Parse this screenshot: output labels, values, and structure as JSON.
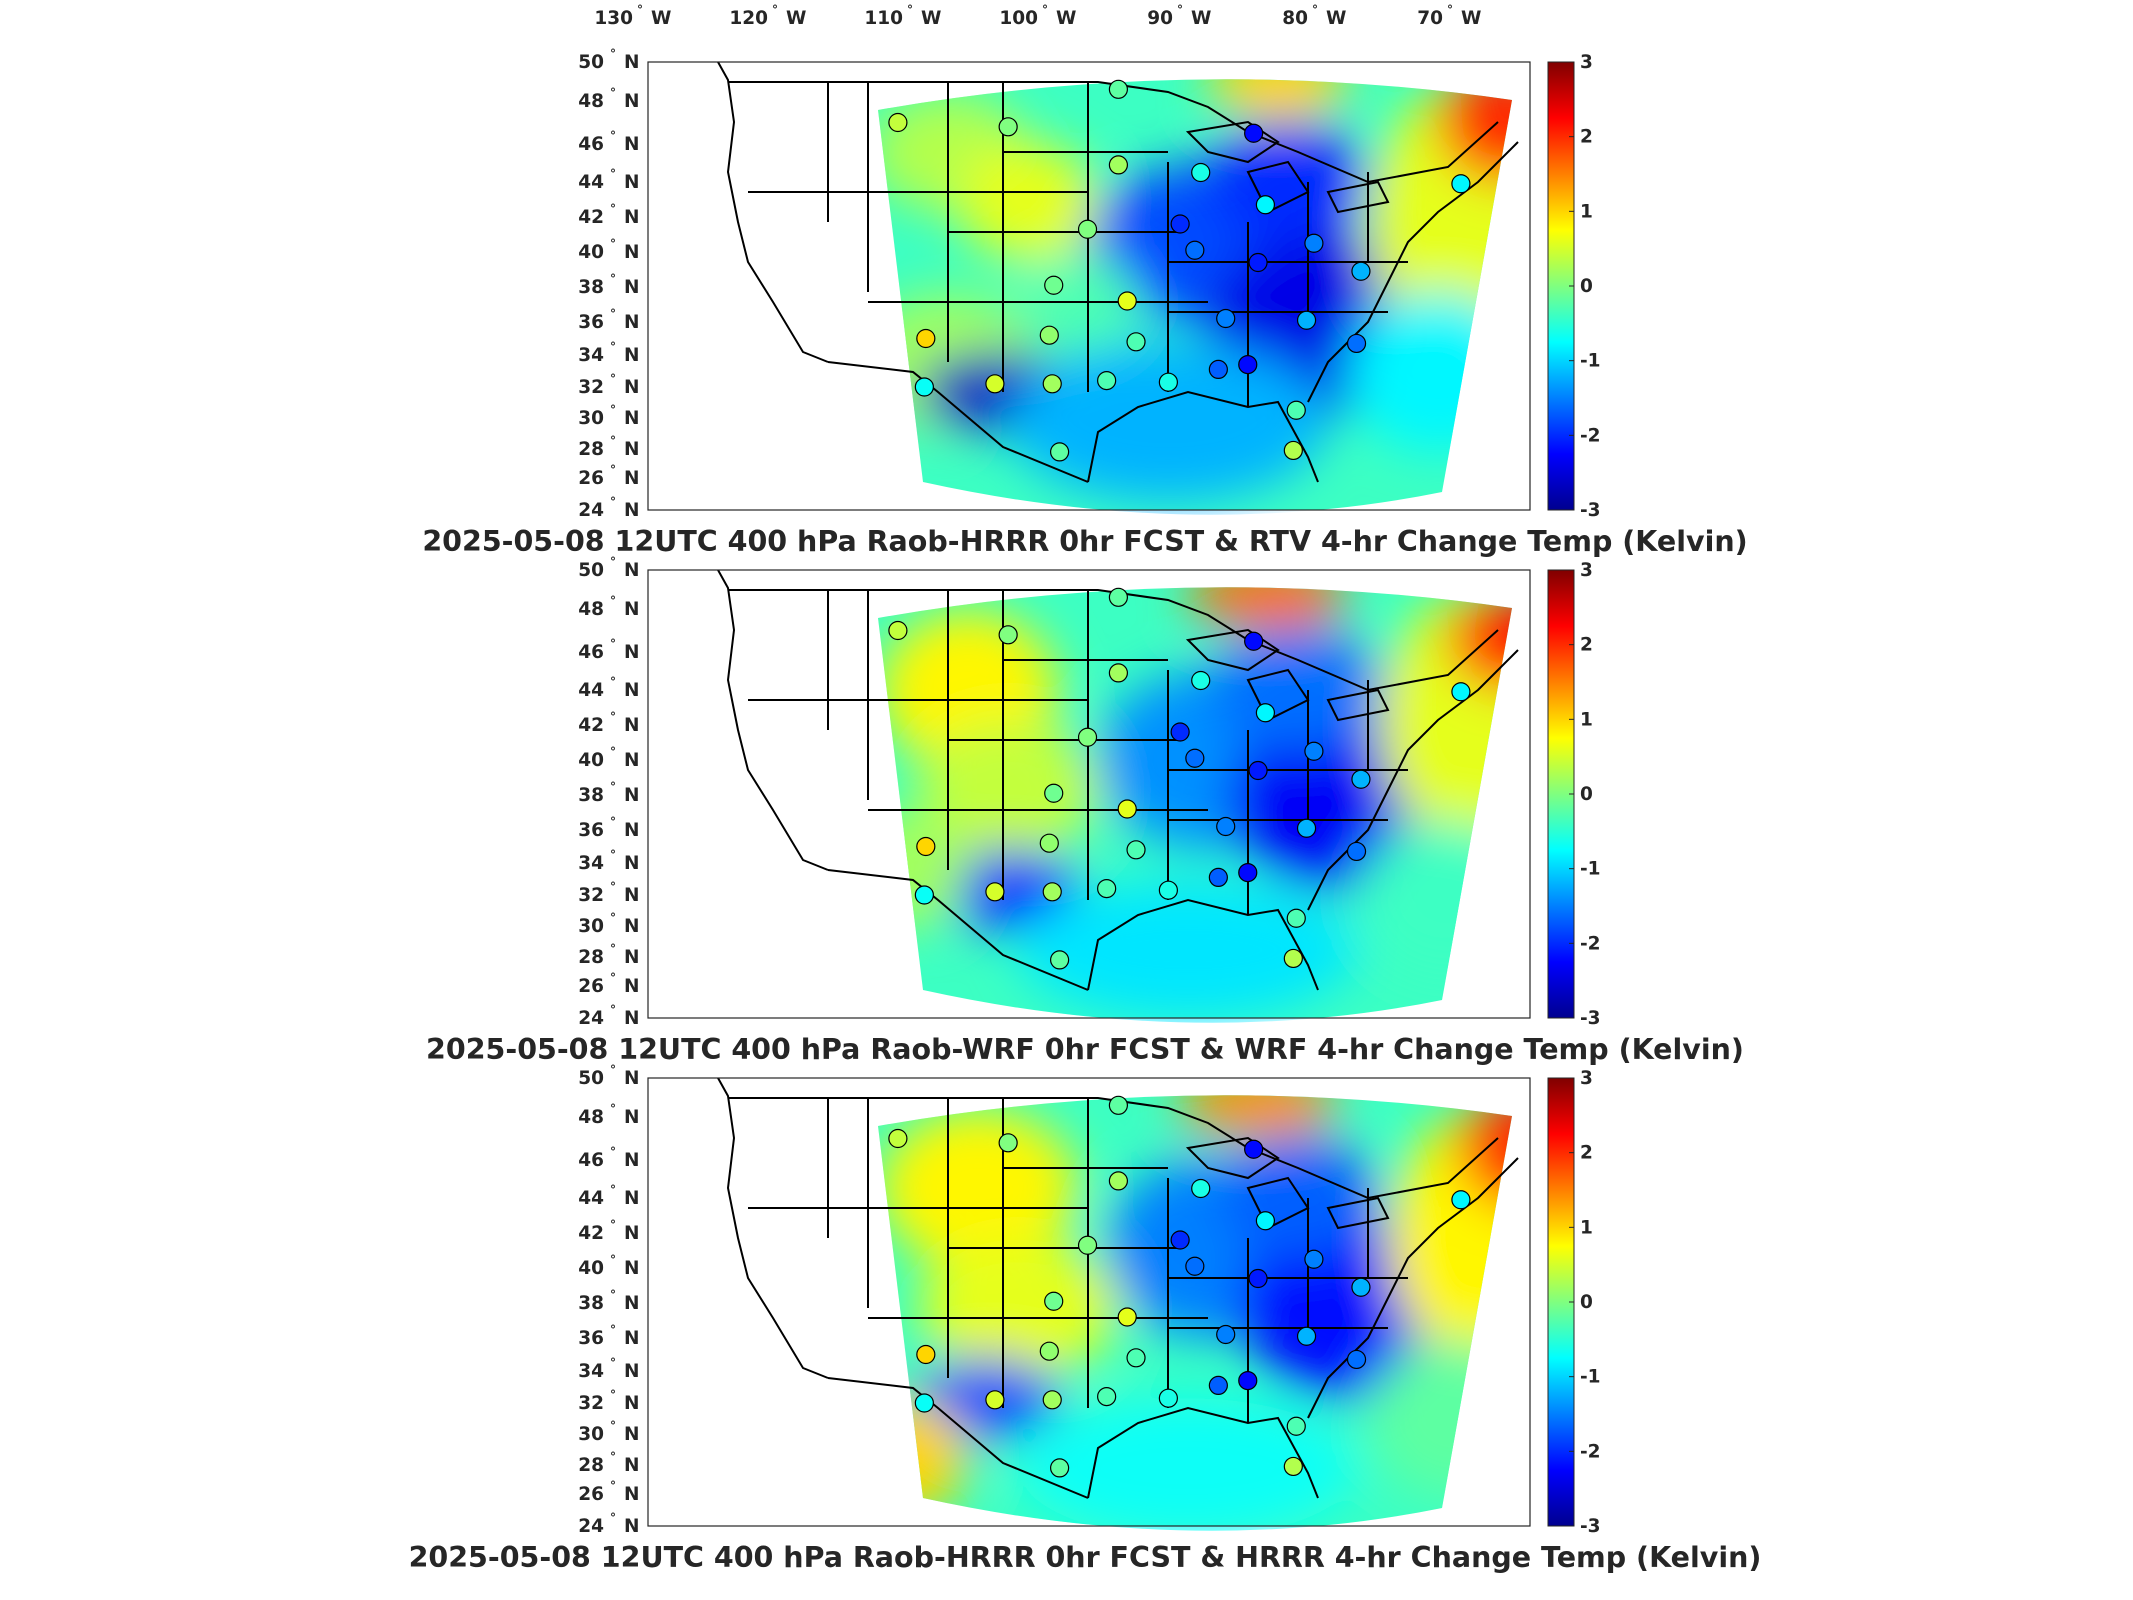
{
  "figure": {
    "panels": [
      {
        "title": "2025-05-08 12UTC 400 hPa Raob-HRRR 0hr FCST & RTV 4-hr Change Temp (Kelvin)",
        "show_lon_labels": true,
        "pattern": "rtv"
      },
      {
        "title": "2025-05-08 12UTC 400 hPa Raob-WRF 0hr FCST & WRF 4-hr Change Temp (Kelvin)",
        "show_lon_labels": false,
        "pattern": "wrf"
      },
      {
        "title": "2025-05-08 12UTC 400 hPa Raob-HRRR 0hr FCST & HRRR 4-hr Change Temp (Kelvin)",
        "show_lon_labels": false,
        "pattern": "hrrr"
      }
    ],
    "lon_labels": [
      "130",
      "120",
      "110",
      "100",
      "90",
      "80",
      "70"
    ],
    "lon_unit": "W",
    "lat_labels": [
      "50",
      "48",
      "46",
      "44",
      "42",
      "40",
      "38",
      "36",
      "34",
      "32",
      "30",
      "28",
      "26",
      "24"
    ],
    "lat_unit": "N",
    "degree_symbol": "°",
    "colorbar": {
      "ticks": [
        "3",
        "2",
        "1",
        "0",
        "-1",
        "-2",
        "-3"
      ],
      "min": -3,
      "max": 3,
      "colormap": "jet"
    },
    "raob_stations": [
      {
        "lon": -108.5,
        "lat": 47.0,
        "v": 0.4
      },
      {
        "lon": -101.0,
        "lat": 46.8,
        "v": 0.0
      },
      {
        "lon": -93.5,
        "lat": 48.6,
        "v": -0.2
      },
      {
        "lon": -93.5,
        "lat": 44.9,
        "v": 0.2
      },
      {
        "lon": -87.9,
        "lat": 44.5,
        "v": -0.6
      },
      {
        "lon": -84.3,
        "lat": 46.5,
        "v": -2.2
      },
      {
        "lon": -83.5,
        "lat": 42.7,
        "v": -0.8
      },
      {
        "lon": -89.3,
        "lat": 41.6,
        "v": -2.0
      },
      {
        "lon": -88.3,
        "lat": 40.1,
        "v": -1.6
      },
      {
        "lon": -84.0,
        "lat": 39.4,
        "v": -2.1
      },
      {
        "lon": -80.2,
        "lat": 40.5,
        "v": -1.5
      },
      {
        "lon": -77.0,
        "lat": 38.9,
        "v": -1.2
      },
      {
        "lon": -95.6,
        "lat": 41.3,
        "v": 0.0
      },
      {
        "lon": -97.9,
        "lat": 38.1,
        "v": -0.1
      },
      {
        "lon": -92.9,
        "lat": 37.2,
        "v": 0.6
      },
      {
        "lon": -98.2,
        "lat": 35.2,
        "v": 0.1
      },
      {
        "lon": -92.3,
        "lat": 34.8,
        "v": -0.3
      },
      {
        "lon": -86.2,
        "lat": 36.2,
        "v": -1.5
      },
      {
        "lon": -80.7,
        "lat": 36.1,
        "v": -1.2
      },
      {
        "lon": -77.3,
        "lat": 34.7,
        "v": -1.6
      },
      {
        "lon": -84.7,
        "lat": 33.4,
        "v": -2.2
      },
      {
        "lon": -86.7,
        "lat": 33.1,
        "v": -1.7
      },
      {
        "lon": -90.1,
        "lat": 32.3,
        "v": -0.6
      },
      {
        "lon": -94.3,
        "lat": 32.4,
        "v": -0.3
      },
      {
        "lon": -98.0,
        "lat": 32.2,
        "v": 0.2
      },
      {
        "lon": -101.9,
        "lat": 32.2,
        "v": 0.5
      },
      {
        "lon": -106.7,
        "lat": 32.0,
        "v": -0.7
      },
      {
        "lon": -106.6,
        "lat": 35.0,
        "v": 1.0
      },
      {
        "lon": -97.5,
        "lat": 27.8,
        "v": -0.2
      },
      {
        "lon": -81.6,
        "lat": 27.9,
        "v": 0.3
      },
      {
        "lon": -81.4,
        "lat": 30.5,
        "v": -0.3
      },
      {
        "lon": -70.2,
        "lat": 43.9,
        "v": -0.8
      }
    ]
  }
}
